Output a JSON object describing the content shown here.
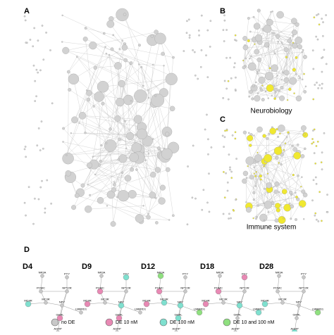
{
  "panels": {
    "a": "A",
    "b": "B",
    "c": "C",
    "d": "D"
  },
  "captions": {
    "b": "Neurobiology",
    "c": "Immune system"
  },
  "legend": [
    {
      "label": "no DE",
      "color": "#c8c8c8"
    },
    {
      "label": "DE 10 nM",
      "color": "#e889b4"
    },
    {
      "label": "DE 100 nM",
      "color": "#7fe0cf"
    },
    {
      "label": "DE 10 and 100 nM",
      "color": "#8fe07f"
    }
  ],
  "genes": [
    "NR3A",
    "PYY",
    "POMC",
    "NPY2R",
    "MC4R",
    "MC3R",
    "NPY",
    "LMBRD1",
    "GHRL",
    "AGRP"
  ],
  "timepoints": [
    {
      "label": "D4",
      "states": [
        0,
        0,
        0,
        0,
        2,
        0,
        0,
        0,
        1,
        0
      ]
    },
    {
      "label": "D9",
      "states": [
        0,
        2,
        1,
        0,
        1,
        0,
        2,
        0,
        1,
        0
      ]
    },
    {
      "label": "D12",
      "states": [
        3,
        0,
        1,
        0,
        1,
        2,
        2,
        3,
        2,
        0
      ]
    },
    {
      "label": "D18",
      "states": [
        0,
        1,
        1,
        0,
        1,
        0,
        2,
        2,
        0,
        0
      ]
    },
    {
      "label": "D28",
      "states": [
        0,
        0,
        0,
        0,
        2,
        0,
        0,
        3,
        0,
        2
      ]
    }
  ]
}
